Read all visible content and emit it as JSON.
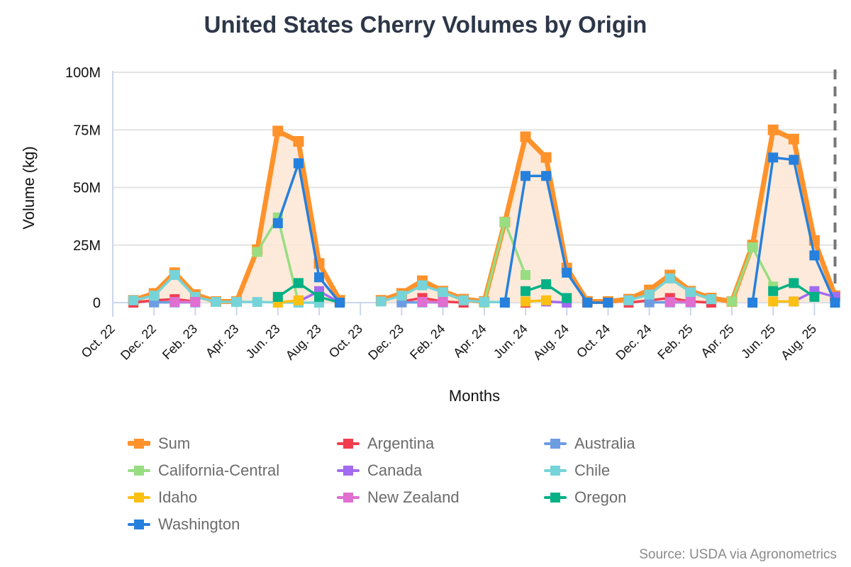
{
  "chart_data": {
    "type": "line",
    "title": "United States Cherry Volumes by Origin",
    "xlabel": "Months",
    "ylabel": "Volume (kg)",
    "ylim": [
      0,
      100000000
    ],
    "y_ticks": [
      "0",
      "25M",
      "50M",
      "75M",
      "100M"
    ],
    "y_tick_values": [
      0,
      25000000,
      50000000,
      75000000,
      100000000
    ],
    "x_ticks": [
      "Oct. 22",
      "Dec. 22",
      "Feb. 23",
      "Apr. 23",
      "Jun. 23",
      "Aug. 23",
      "Oct. 23",
      "Dec. 23",
      "Feb. 24",
      "Apr. 24",
      "Jun. 24",
      "Aug. 24",
      "Oct. 24",
      "Dec. 24",
      "Feb. 25",
      "Apr. 25",
      "Jun. 25",
      "Aug. 25"
    ],
    "x": [
      "2022-10",
      "2022-11",
      "2022-12",
      "2023-01",
      "2023-02",
      "2023-03",
      "2023-04",
      "2023-05",
      "2023-06",
      "2023-07",
      "2023-08",
      "2023-09",
      "2023-10",
      "2023-11",
      "2023-12",
      "2024-01",
      "2024-02",
      "2024-03",
      "2024-04",
      "2024-05",
      "2024-06",
      "2024-07",
      "2024-08",
      "2024-09",
      "2024-10",
      "2024-11",
      "2024-12",
      "2025-01",
      "2025-02",
      "2025-03",
      "2025-04",
      "2025-05",
      "2025-06",
      "2025-07",
      "2025-08",
      "2025-09"
    ],
    "grid": "horizontal",
    "legend_position": "bottom",
    "current_marker": "dashed vertical line at 2025-09",
    "units": "million kg",
    "series": [
      {
        "name": "Sum",
        "color": "#ff922b",
        "fill": "#fde6d3",
        "values": [
          null,
          1,
          4,
          13,
          3.5,
          0.5,
          0.5,
          23,
          74.5,
          70,
          17,
          1,
          null,
          1,
          4,
          9.5,
          5,
          1.5,
          0.5,
          35,
          72,
          63,
          15,
          0.5,
          0.5,
          1.5,
          5.5,
          12,
          5,
          2,
          0.5,
          25,
          75,
          71,
          27,
          3
        ]
      },
      {
        "name": "Argentina",
        "color": "#f03e4f",
        "values": [
          null,
          0,
          1,
          1.5,
          0.5,
          null,
          null,
          null,
          null,
          null,
          null,
          null,
          null,
          null,
          0.5,
          2,
          0.5,
          0,
          null,
          null,
          0,
          null,
          null,
          null,
          null,
          0,
          1,
          2,
          0.5,
          0,
          null,
          null,
          null,
          null,
          null,
          null
        ]
      },
      {
        "name": "Australia",
        "color": "#6c9de3",
        "values": [
          null,
          null,
          0.1,
          0.1,
          0.1,
          null,
          null,
          null,
          null,
          null,
          null,
          null,
          null,
          null,
          0.1,
          0.1,
          0.1,
          null,
          null,
          null,
          null,
          null,
          null,
          null,
          null,
          null,
          0.1,
          0.1,
          0.1,
          null,
          null,
          null,
          null,
          null,
          null,
          null
        ]
      },
      {
        "name": "California-Central",
        "color": "#98dd82",
        "values": [
          null,
          null,
          null,
          null,
          null,
          null,
          null,
          22,
          37,
          0,
          null,
          null,
          null,
          null,
          null,
          null,
          null,
          null,
          0,
          35,
          12,
          null,
          null,
          null,
          null,
          null,
          null,
          null,
          null,
          null,
          0.5,
          24,
          7,
          null,
          null,
          null
        ]
      },
      {
        "name": "Canada",
        "color": "#a36bef",
        "values": [
          null,
          null,
          null,
          null,
          null,
          null,
          null,
          null,
          null,
          0.5,
          5,
          0,
          null,
          null,
          null,
          null,
          null,
          null,
          null,
          null,
          null,
          0.5,
          0,
          null,
          null,
          null,
          null,
          null,
          null,
          null,
          null,
          null,
          null,
          0.5,
          5,
          2.5
        ]
      },
      {
        "name": "Chile",
        "color": "#76d4d9",
        "values": [
          null,
          1,
          3,
          12,
          2.5,
          0.3,
          0.3,
          0.3,
          0.1,
          0,
          0,
          null,
          null,
          0.5,
          3,
          7.5,
          4.5,
          1,
          0.3,
          0.2,
          null,
          null,
          null,
          null,
          null,
          1,
          3.5,
          10.5,
          4.5,
          1.5,
          null,
          null,
          null,
          null,
          null,
          null
        ]
      },
      {
        "name": "Idaho",
        "color": "#fcc013",
        "values": [
          null,
          null,
          null,
          null,
          null,
          null,
          null,
          null,
          0,
          1,
          null,
          null,
          null,
          null,
          null,
          null,
          null,
          null,
          null,
          null,
          0.5,
          1,
          null,
          null,
          null,
          null,
          null,
          null,
          null,
          null,
          null,
          null,
          0.5,
          0.5,
          null,
          null
        ]
      },
      {
        "name": "New Zealand",
        "color": "#df6fd0",
        "values": [
          null,
          null,
          null,
          0.3,
          0.3,
          null,
          null,
          null,
          null,
          null,
          null,
          null,
          null,
          null,
          null,
          0.3,
          0.3,
          null,
          null,
          null,
          null,
          null,
          null,
          null,
          null,
          null,
          null,
          0.3,
          0.3,
          null,
          null,
          null,
          null,
          null,
          null,
          null
        ]
      },
      {
        "name": "Oregon",
        "color": "#04b185",
        "values": [
          null,
          null,
          null,
          null,
          null,
          null,
          null,
          null,
          2.5,
          8.5,
          2.5,
          0,
          null,
          null,
          null,
          null,
          null,
          null,
          null,
          null,
          5,
          8,
          2,
          null,
          null,
          null,
          null,
          null,
          null,
          null,
          null,
          null,
          5,
          8.5,
          2.5,
          null
        ]
      },
      {
        "name": "Washington",
        "color": "#2680dd",
        "values": [
          null,
          null,
          null,
          null,
          null,
          null,
          null,
          null,
          34.5,
          60.5,
          11,
          0,
          null,
          null,
          null,
          null,
          null,
          null,
          null,
          0,
          55,
          55,
          13,
          0,
          0,
          null,
          null,
          null,
          null,
          null,
          null,
          0,
          63,
          62,
          20.5,
          0
        ]
      }
    ]
  },
  "source": "Source: USDA via Agronometrics"
}
